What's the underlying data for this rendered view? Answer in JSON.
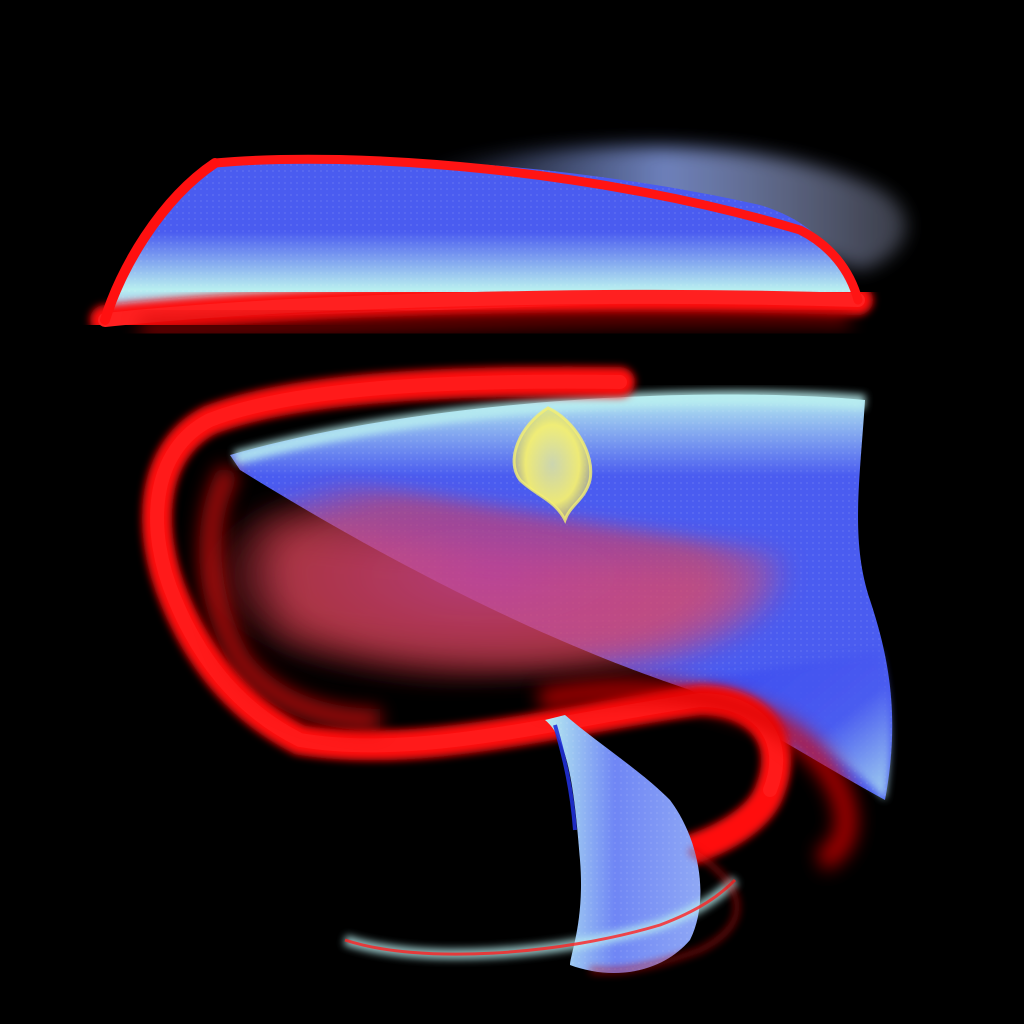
{
  "scene": {
    "background": "#000000",
    "colors": {
      "red_surface": "#ff1010",
      "blue_surface": "#4a5cf0",
      "light_blue_band": "#b8eef0",
      "pale_periwinkle": "#8fa8f5",
      "yellow_blob": "#f5f070",
      "magenta_blend": "#a03aa8"
    }
  }
}
